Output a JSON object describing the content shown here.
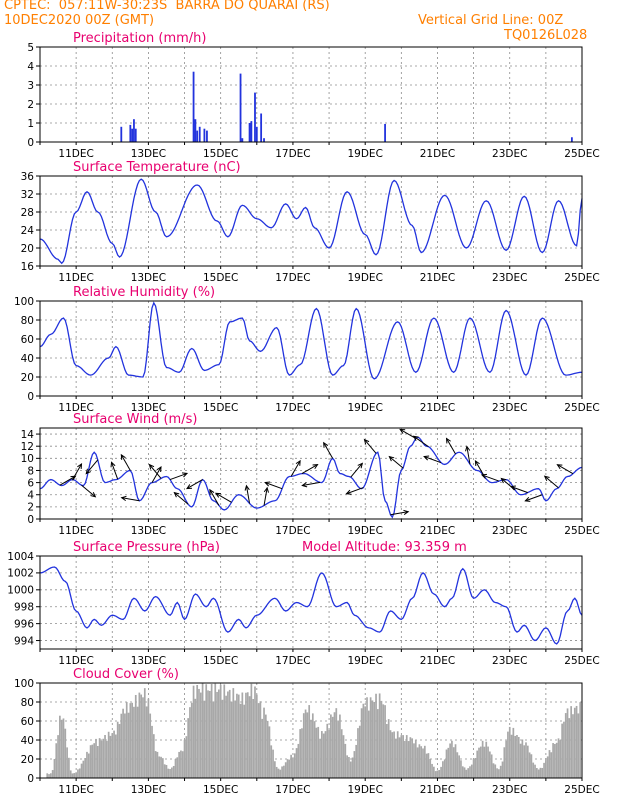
{
  "header": {
    "line1": "CPTEC:  057:11W-30:23S  BARRA DO QUARAI (RS)",
    "line2": "10DEC2020 00Z (GMT)",
    "grid_note": "Vertical Grid Line: 00Z",
    "code": "TQ0126L028"
  },
  "x_axis": {
    "start": "10DEC2020 00Z",
    "end": "25DEC2020 00Z",
    "tick_labels": [
      "11DEC",
      "13DEC",
      "15DEC",
      "17DEC",
      "19DEC",
      "21DEC",
      "23DEC",
      "25DEC"
    ],
    "tick_days": [
      1,
      3,
      5,
      7,
      9,
      11,
      13,
      15
    ],
    "vertical_grid": "daily 00Z"
  },
  "colors": {
    "series": "#2233dd",
    "cloud": "#a8a8a8",
    "title": "#e8006f",
    "header": "#ff7f00",
    "arrow": "#000000"
  },
  "chart_data": [
    {
      "id": "precipitation",
      "type": "bar",
      "title": "Precipitation (mm/h)",
      "ylim": [
        0,
        5
      ],
      "yticks": [
        0,
        1,
        2,
        3,
        4,
        5
      ],
      "bars": [
        {
          "day": 2.25,
          "value": 0.8
        },
        {
          "day": 2.5,
          "value": 0.9
        },
        {
          "day": 2.55,
          "value": 0.7
        },
        {
          "day": 2.6,
          "value": 1.2
        },
        {
          "day": 2.65,
          "value": 0.7
        },
        {
          "day": 4.25,
          "value": 3.7
        },
        {
          "day": 4.3,
          "value": 1.2
        },
        {
          "day": 4.35,
          "value": 0.6
        },
        {
          "day": 4.42,
          "value": 0.8
        },
        {
          "day": 4.55,
          "value": 0.7
        },
        {
          "day": 4.62,
          "value": 0.6
        },
        {
          "day": 5.55,
          "value": 3.6
        },
        {
          "day": 5.6,
          "value": 0.2
        },
        {
          "day": 5.8,
          "value": 1.0
        },
        {
          "day": 5.85,
          "value": 1.1
        },
        {
          "day": 5.95,
          "value": 2.6
        },
        {
          "day": 6.0,
          "value": 0.8
        },
        {
          "day": 6.12,
          "value": 1.5
        },
        {
          "day": 6.2,
          "value": 0.2
        },
        {
          "day": 9.55,
          "value": 0.95
        },
        {
          "day": 14.72,
          "value": 0.25
        }
      ]
    },
    {
      "id": "temperature",
      "type": "line",
      "title": "Surface Temperature (nC)",
      "ylim": [
        16,
        36
      ],
      "yticks": [
        16,
        20,
        24,
        28,
        32,
        36
      ],
      "extremes": [
        [
          0,
          22
        ],
        [
          0.5,
          17.5
        ],
        [
          0.6,
          16.6
        ],
        [
          1.0,
          28
        ],
        [
          1.3,
          32.5
        ],
        [
          1.6,
          28
        ],
        [
          2.0,
          21
        ],
        [
          2.2,
          18
        ],
        [
          2.8,
          35.3
        ],
        [
          3.2,
          28
        ],
        [
          3.5,
          22.5
        ],
        [
          4.35,
          34
        ],
        [
          4.9,
          26
        ],
        [
          5.2,
          22.5
        ],
        [
          5.6,
          29.5
        ],
        [
          6.0,
          26.5
        ],
        [
          6.4,
          24.5
        ],
        [
          6.8,
          29.8
        ],
        [
          7.1,
          26.5
        ],
        [
          7.35,
          29
        ],
        [
          7.6,
          24.5
        ],
        [
          8.0,
          20
        ],
        [
          8.5,
          32.5
        ],
        [
          9.0,
          23
        ],
        [
          9.3,
          18.5
        ],
        [
          9.8,
          35
        ],
        [
          10.3,
          25
        ],
        [
          10.55,
          19
        ],
        [
          11.2,
          31.7
        ],
        [
          11.8,
          20
        ],
        [
          12.35,
          30.5
        ],
        [
          12.9,
          19.5
        ],
        [
          13.4,
          31.5
        ],
        [
          13.9,
          19
        ],
        [
          14.35,
          30.5
        ],
        [
          14.85,
          20.5
        ],
        [
          15.0,
          31
        ]
      ]
    },
    {
      "id": "humidity",
      "type": "line",
      "title": "Relative Humidity (%)",
      "ylim": [
        0,
        100
      ],
      "yticks": [
        0,
        20,
        40,
        60,
        80,
        100
      ],
      "extremes": [
        [
          0,
          52
        ],
        [
          0.3,
          65
        ],
        [
          0.65,
          82
        ],
        [
          1.0,
          32
        ],
        [
          1.4,
          22
        ],
        [
          1.9,
          40
        ],
        [
          2.1,
          52
        ],
        [
          2.45,
          22
        ],
        [
          2.85,
          20
        ],
        [
          3.15,
          98
        ],
        [
          3.5,
          30
        ],
        [
          3.85,
          25
        ],
        [
          4.2,
          50
        ],
        [
          4.55,
          27
        ],
        [
          4.95,
          33
        ],
        [
          5.25,
          78
        ],
        [
          5.6,
          82
        ],
        [
          5.8,
          58
        ],
        [
          6.1,
          47
        ],
        [
          6.55,
          72
        ],
        [
          6.9,
          22
        ],
        [
          7.2,
          33
        ],
        [
          7.65,
          92
        ],
        [
          8.1,
          22
        ],
        [
          8.4,
          32
        ],
        [
          8.75,
          92
        ],
        [
          9.25,
          18
        ],
        [
          9.9,
          78
        ],
        [
          10.4,
          25
        ],
        [
          10.9,
          82
        ],
        [
          11.45,
          25
        ],
        [
          11.9,
          82
        ],
        [
          12.45,
          25
        ],
        [
          12.9,
          90
        ],
        [
          13.45,
          22
        ],
        [
          13.9,
          82
        ],
        [
          14.55,
          22
        ],
        [
          15.0,
          25
        ]
      ]
    },
    {
      "id": "wind",
      "type": "line",
      "title": "Surface Wind (m/s)",
      "ylim": [
        0,
        15
      ],
      "yticks": [
        0,
        2,
        4,
        6,
        8,
        10,
        12,
        14
      ],
      "extremes": [
        [
          0,
          5
        ],
        [
          0.3,
          6.5
        ],
        [
          0.6,
          5.5
        ],
        [
          0.9,
          6.5
        ],
        [
          1.2,
          5.5
        ],
        [
          1.5,
          11
        ],
        [
          1.8,
          6
        ],
        [
          2.1,
          6.5
        ],
        [
          2.5,
          8
        ],
        [
          2.75,
          3
        ],
        [
          3.1,
          6
        ],
        [
          3.5,
          7
        ],
        [
          3.8,
          5
        ],
        [
          4.2,
          2
        ],
        [
          4.5,
          6.5
        ],
        [
          4.8,
          3
        ],
        [
          5.1,
          1.5
        ],
        [
          5.5,
          4
        ],
        [
          6.0,
          1.8
        ],
        [
          6.5,
          3
        ],
        [
          6.9,
          7
        ],
        [
          7.3,
          7.5
        ],
        [
          7.8,
          6
        ],
        [
          8.1,
          10
        ],
        [
          8.3,
          7.5
        ],
        [
          8.55,
          7
        ],
        [
          8.9,
          5
        ],
        [
          9.35,
          11
        ],
        [
          9.55,
          3
        ],
        [
          9.75,
          0.3
        ],
        [
          10.0,
          8
        ],
        [
          10.25,
          12
        ],
        [
          10.45,
          13.5
        ],
        [
          10.7,
          12
        ],
        [
          11.2,
          9
        ],
        [
          11.6,
          11
        ],
        [
          12.1,
          8
        ],
        [
          12.5,
          6
        ],
        [
          12.9,
          6.5
        ],
        [
          13.3,
          4
        ],
        [
          13.8,
          5
        ],
        [
          14.0,
          3
        ],
        [
          14.3,
          5
        ],
        [
          14.6,
          7
        ],
        [
          15.0,
          8.5
        ]
      ],
      "direction_arrows": [
        {
          "day": 0.55,
          "angle": 30
        },
        {
          "day": 0.9,
          "angle": 60
        },
        {
          "day": 1.15,
          "angle": -40
        },
        {
          "day": 1.6,
          "angle": 230
        },
        {
          "day": 2.15,
          "angle": 110
        },
        {
          "day": 2.5,
          "angle": 120
        },
        {
          "day": 2.75,
          "angle": 170
        },
        {
          "day": 3.1,
          "angle": 60
        },
        {
          "day": 3.35,
          "angle": 130
        },
        {
          "day": 3.6,
          "angle": 20
        },
        {
          "day": 4.1,
          "angle": 140
        },
        {
          "day": 4.5,
          "angle": 210
        },
        {
          "day": 4.95,
          "angle": 120
        },
        {
          "day": 5.3,
          "angle": 150
        },
        {
          "day": 5.8,
          "angle": 100
        },
        {
          "day": 6.2,
          "angle": 80
        },
        {
          "day": 6.7,
          "angle": 160
        },
        {
          "day": 6.95,
          "angle": 60
        },
        {
          "day": 7.25,
          "angle": 30
        },
        {
          "day": 7.75,
          "angle": 190
        },
        {
          "day": 8.1,
          "angle": 120
        },
        {
          "day": 8.6,
          "angle": 50
        },
        {
          "day": 8.95,
          "angle": 200
        },
        {
          "day": 9.3,
          "angle": 130
        },
        {
          "day": 9.7,
          "angle": 10
        },
        {
          "day": 10.05,
          "angle": 140
        },
        {
          "day": 10.4,
          "angle": 150
        },
        {
          "day": 10.75,
          "angle": 145
        },
        {
          "day": 11.1,
          "angle": 160
        },
        {
          "day": 11.5,
          "angle": 120
        },
        {
          "day": 11.9,
          "angle": 100
        },
        {
          "day": 12.3,
          "angle": 120
        },
        {
          "day": 12.7,
          "angle": 160
        },
        {
          "day": 13.15,
          "angle": 140
        },
        {
          "day": 13.5,
          "angle": 160
        },
        {
          "day": 13.9,
          "angle": 200
        },
        {
          "day": 14.35,
          "angle": 140
        },
        {
          "day": 14.75,
          "angle": 150
        }
      ]
    },
    {
      "id": "pressure",
      "type": "line",
      "title": "Surface Pressure (hPa)",
      "annotation": "Model Altitude: 93.359 m",
      "ylim": [
        993,
        1004
      ],
      "yticks": [
        994,
        996,
        998,
        1000,
        1002,
        1004
      ],
      "extremes": [
        [
          0,
          1002
        ],
        [
          0.4,
          1002.7
        ],
        [
          0.7,
          1001
        ],
        [
          1.0,
          997.5
        ],
        [
          1.3,
          995.5
        ],
        [
          1.5,
          996.5
        ],
        [
          1.7,
          995.8
        ],
        [
          2.0,
          997
        ],
        [
          2.3,
          996.5
        ],
        [
          2.6,
          999
        ],
        [
          2.9,
          997.5
        ],
        [
          3.2,
          999.2
        ],
        [
          3.6,
          997
        ],
        [
          3.8,
          998.5
        ],
        [
          4.0,
          996.5
        ],
        [
          4.3,
          999.5
        ],
        [
          4.6,
          998
        ],
        [
          4.8,
          999
        ],
        [
          5.2,
          995
        ],
        [
          5.5,
          996.5
        ],
        [
          5.7,
          995.5
        ],
        [
          6.0,
          997
        ],
        [
          6.5,
          999
        ],
        [
          6.8,
          997.5
        ],
        [
          7.1,
          998.5
        ],
        [
          7.4,
          998
        ],
        [
          7.8,
          1002
        ],
        [
          8.2,
          998
        ],
        [
          8.5,
          998.5
        ],
        [
          8.7,
          997
        ],
        [
          9.1,
          995.5
        ],
        [
          9.4,
          995
        ],
        [
          9.7,
          997.5
        ],
        [
          10.0,
          996.5
        ],
        [
          10.3,
          999
        ],
        [
          10.6,
          1002
        ],
        [
          10.9,
          999.5
        ],
        [
          11.2,
          998
        ],
        [
          11.4,
          999
        ],
        [
          11.7,
          1002.5
        ],
        [
          12.0,
          999
        ],
        [
          12.3,
          1000
        ],
        [
          12.6,
          998.5
        ],
        [
          12.9,
          998
        ],
        [
          13.2,
          995
        ],
        [
          13.4,
          995.8
        ],
        [
          13.7,
          994
        ],
        [
          14.0,
          995.5
        ],
        [
          14.3,
          993.6
        ],
        [
          14.6,
          997.5
        ],
        [
          14.8,
          999
        ],
        [
          15.0,
          997
        ]
      ]
    },
    {
      "id": "cloud",
      "type": "bar",
      "title": "Cloud Cover (%)",
      "ylim": [
        0,
        100
      ],
      "yticks": [
        0,
        20,
        40,
        60,
        80,
        100
      ],
      "peaks": [
        [
          0.3,
          5
        ],
        [
          0.6,
          70
        ],
        [
          0.9,
          5
        ],
        [
          1.6,
          42
        ],
        [
          2.0,
          50
        ],
        [
          2.4,
          80
        ],
        [
          2.9,
          95
        ],
        [
          3.3,
          25
        ],
        [
          3.6,
          10
        ],
        [
          3.9,
          30
        ],
        [
          4.3,
          100
        ],
        [
          4.7,
          100
        ],
        [
          5.0,
          100
        ],
        [
          5.3,
          95
        ],
        [
          5.6,
          90
        ],
        [
          5.9,
          100
        ],
        [
          6.2,
          75
        ],
        [
          6.6,
          10
        ],
        [
          7.0,
          25
        ],
        [
          7.4,
          78
        ],
        [
          7.8,
          50
        ],
        [
          8.2,
          75
        ],
        [
          8.6,
          20
        ],
        [
          9.0,
          85
        ],
        [
          9.4,
          90
        ],
        [
          9.8,
          50
        ],
        [
          10.2,
          45
        ],
        [
          10.6,
          35
        ],
        [
          11.0,
          8
        ],
        [
          11.4,
          40
        ],
        [
          11.8,
          10
        ],
        [
          12.3,
          40
        ],
        [
          12.7,
          10
        ],
        [
          13.0,
          55
        ],
        [
          13.4,
          40
        ],
        [
          13.8,
          10
        ],
        [
          14.3,
          40
        ],
        [
          14.6,
          75
        ],
        [
          15.0,
          80
        ]
      ]
    }
  ]
}
